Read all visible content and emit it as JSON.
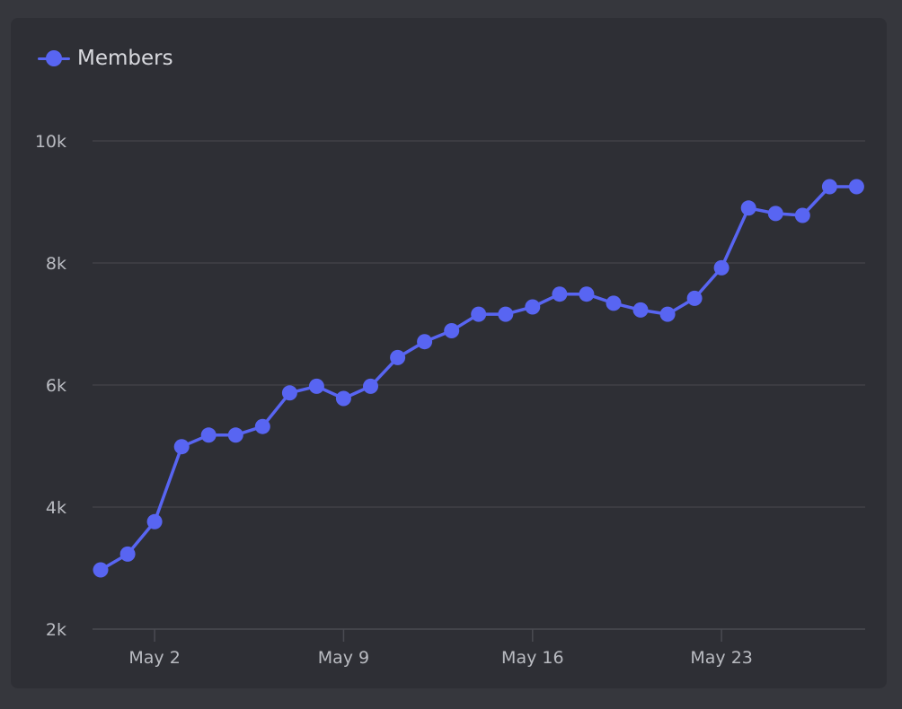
{
  "chart_data": {
    "type": "line",
    "title": "",
    "xlabel": "",
    "ylabel": "",
    "legend": {
      "position": "top-left",
      "entries": [
        "Members"
      ]
    },
    "grid": {
      "horizontal": true,
      "vertical": false
    },
    "ylim": [
      2000,
      10000
    ],
    "yticks": [
      {
        "value": 10000,
        "label": "10k"
      },
      {
        "value": 8000,
        "label": "8k"
      },
      {
        "value": 6000,
        "label": "6k"
      },
      {
        "value": 4000,
        "label": "4k"
      },
      {
        "value": 2000,
        "label": "2k"
      }
    ],
    "xlim": [
      "2025-04-30",
      "2025-05-30"
    ],
    "xticks": [
      {
        "value": "2025-05-02",
        "label": "May 2"
      },
      {
        "value": "2025-05-09",
        "label": "May 9"
      },
      {
        "value": "2025-05-16",
        "label": "May 16"
      },
      {
        "value": "2025-05-23",
        "label": "May 23"
      }
    ],
    "x": [
      "2025-04-30",
      "2025-05-01",
      "2025-05-02",
      "2025-05-03",
      "2025-05-04",
      "2025-05-05",
      "2025-05-06",
      "2025-05-07",
      "2025-05-08",
      "2025-05-09",
      "2025-05-10",
      "2025-05-11",
      "2025-05-12",
      "2025-05-13",
      "2025-05-14",
      "2025-05-15",
      "2025-05-16",
      "2025-05-17",
      "2025-05-18",
      "2025-05-19",
      "2025-05-20",
      "2025-05-21",
      "2025-05-22",
      "2025-05-23",
      "2025-05-24",
      "2025-05-25",
      "2025-05-26",
      "2025-05-27",
      "2025-05-28"
    ],
    "series": [
      {
        "name": "Members",
        "color": "#5865f2",
        "values": [
          2970,
          3230,
          3760,
          4990,
          5180,
          5180,
          5320,
          5870,
          5980,
          5780,
          5980,
          6450,
          6710,
          6890,
          7160,
          7160,
          7280,
          7490,
          7490,
          7340,
          7230,
          7160,
          7420,
          7920,
          8900,
          8810,
          8780,
          9250,
          9250
        ]
      }
    ]
  }
}
